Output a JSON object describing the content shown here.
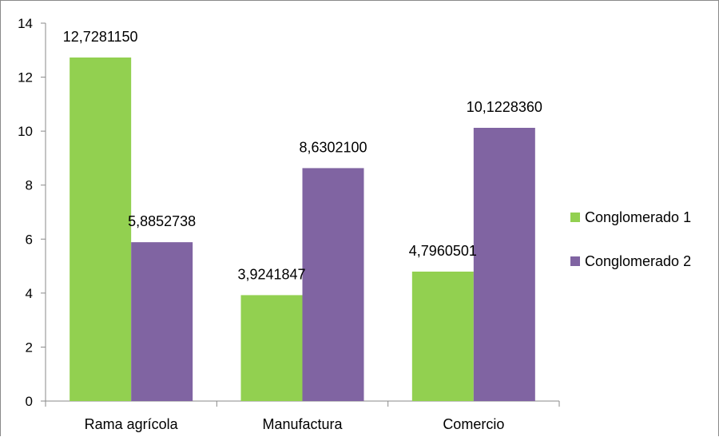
{
  "chart_data": {
    "type": "bar",
    "categories": [
      "Rama agrícola",
      "Manufactura",
      "Comercio"
    ],
    "series": [
      {
        "name": "Conglomerado 1",
        "values": [
          12.728115,
          3.9241847,
          4.7960501
        ],
        "labels": [
          "12,7281150",
          "3,9241847",
          "4,7960501"
        ],
        "color": "#92D050"
      },
      {
        "name": "Conglomerado 2",
        "values": [
          5.8852738,
          8.63021,
          10.122836
        ],
        "labels": [
          "5,8852738",
          "8,6302100",
          "10,1228360"
        ],
        "color": "#8064A2"
      }
    ],
    "title": "",
    "xlabel": "",
    "ylabel": "",
    "ylim": [
      0,
      14
    ],
    "yticks": [
      0,
      2,
      4,
      6,
      8,
      10,
      12,
      14
    ],
    "grid": false,
    "legend": "right"
  }
}
